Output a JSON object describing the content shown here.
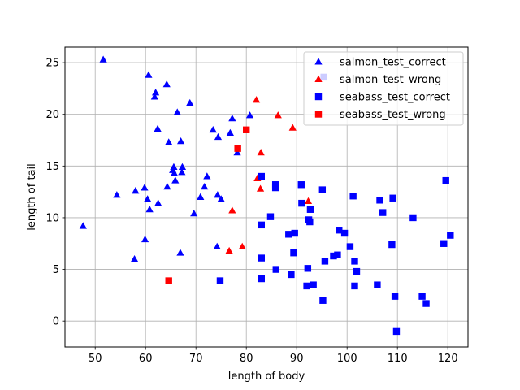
{
  "chart_data": {
    "type": "scatter",
    "xlabel": "length of body",
    "ylabel": "length of tail",
    "xlim": [
      44,
      124
    ],
    "ylim": [
      -2.5,
      26.5
    ],
    "xticks": [
      50,
      60,
      70,
      80,
      90,
      100,
      110,
      120
    ],
    "yticks": [
      0,
      5,
      10,
      15,
      20,
      25
    ],
    "grid": true,
    "legend_position": "top-right",
    "series": [
      {
        "name": "salmon_test_correct",
        "color": "#0000ff",
        "marker": "triangle",
        "points": [
          [
            47.6,
            9.2
          ],
          [
            51.6,
            25.3
          ],
          [
            54.3,
            12.2
          ],
          [
            57.8,
            6.0
          ],
          [
            58.0,
            12.6
          ],
          [
            59.8,
            12.9
          ],
          [
            59.9,
            7.9
          ],
          [
            60.4,
            11.8
          ],
          [
            60.6,
            23.8
          ],
          [
            60.8,
            10.8
          ],
          [
            61.8,
            21.7
          ],
          [
            62.0,
            22.1
          ],
          [
            62.4,
            18.6
          ],
          [
            62.5,
            11.4
          ],
          [
            64.2,
            22.9
          ],
          [
            64.3,
            13.0
          ],
          [
            64.6,
            17.3
          ],
          [
            65.4,
            14.6
          ],
          [
            65.6,
            14.9
          ],
          [
            65.7,
            14.3
          ],
          [
            65.9,
            13.6
          ],
          [
            66.3,
            20.2
          ],
          [
            66.9,
            6.6
          ],
          [
            67.0,
            17.4
          ],
          [
            67.2,
            14.4
          ],
          [
            67.3,
            14.9
          ],
          [
            68.8,
            21.1
          ],
          [
            69.6,
            10.4
          ],
          [
            70.9,
            12.0
          ],
          [
            71.7,
            13.0
          ],
          [
            72.2,
            14.0
          ],
          [
            73.4,
            18.5
          ],
          [
            74.2,
            7.2
          ],
          [
            74.3,
            12.2
          ],
          [
            74.4,
            17.8
          ],
          [
            75.0,
            11.8
          ],
          [
            76.8,
            18.2
          ],
          [
            77.2,
            19.6
          ],
          [
            78.2,
            16.3
          ],
          [
            80.7,
            19.9
          ]
        ]
      },
      {
        "name": "salmon_test_wrong",
        "color": "#ff0000",
        "marker": "triangle",
        "points": [
          [
            76.6,
            6.8
          ],
          [
            77.2,
            10.7
          ],
          [
            79.2,
            7.2
          ],
          [
            82.0,
            21.4
          ],
          [
            82.2,
            13.8
          ],
          [
            82.8,
            12.8
          ],
          [
            82.9,
            16.3
          ],
          [
            86.3,
            19.9
          ],
          [
            89.2,
            18.7
          ],
          [
            92.3,
            11.6
          ]
        ]
      },
      {
        "name": "seabass_test_correct",
        "color": "#0000ff",
        "marker": "square",
        "points": [
          [
            74.8,
            3.9
          ],
          [
            83.0,
            14.0
          ],
          [
            83.0,
            9.3
          ],
          [
            83.0,
            6.1
          ],
          [
            83.0,
            4.1
          ],
          [
            84.8,
            10.1
          ],
          [
            85.8,
            13.2
          ],
          [
            85.8,
            12.9
          ],
          [
            85.9,
            5.0
          ],
          [
            88.4,
            8.4
          ],
          [
            88.9,
            4.5
          ],
          [
            89.4,
            6.6
          ],
          [
            89.6,
            8.5
          ],
          [
            90.9,
            13.2
          ],
          [
            91.0,
            11.4
          ],
          [
            92.0,
            3.4
          ],
          [
            92.2,
            5.1
          ],
          [
            92.4,
            9.8
          ],
          [
            92.6,
            9.6
          ],
          [
            92.7,
            10.8
          ],
          [
            93.3,
            3.5
          ],
          [
            95.1,
            12.7
          ],
          [
            95.2,
            2.0
          ],
          [
            95.4,
            23.6
          ],
          [
            95.6,
            5.8
          ],
          [
            97.3,
            6.3
          ],
          [
            98.1,
            6.4
          ],
          [
            98.4,
            8.8
          ],
          [
            99.5,
            8.5
          ],
          [
            100.6,
            7.2
          ],
          [
            101.2,
            12.1
          ],
          [
            101.5,
            3.4
          ],
          [
            101.5,
            5.8
          ],
          [
            101.9,
            4.8
          ],
          [
            106.0,
            3.5
          ],
          [
            106.5,
            11.7
          ],
          [
            107.1,
            10.5
          ],
          [
            108.9,
            7.4
          ],
          [
            109.1,
            11.9
          ],
          [
            109.5,
            2.4
          ],
          [
            109.8,
            -1.0
          ],
          [
            113.1,
            10.0
          ],
          [
            114.9,
            2.4
          ],
          [
            115.7,
            1.7
          ],
          [
            119.2,
            7.5
          ],
          [
            119.6,
            13.6
          ],
          [
            120.5,
            8.3
          ]
        ]
      },
      {
        "name": "seabass_test_wrong",
        "color": "#ff0000",
        "marker": "square",
        "points": [
          [
            64.6,
            3.9
          ],
          [
            78.3,
            16.7
          ],
          [
            80.0,
            18.5
          ]
        ]
      }
    ]
  }
}
